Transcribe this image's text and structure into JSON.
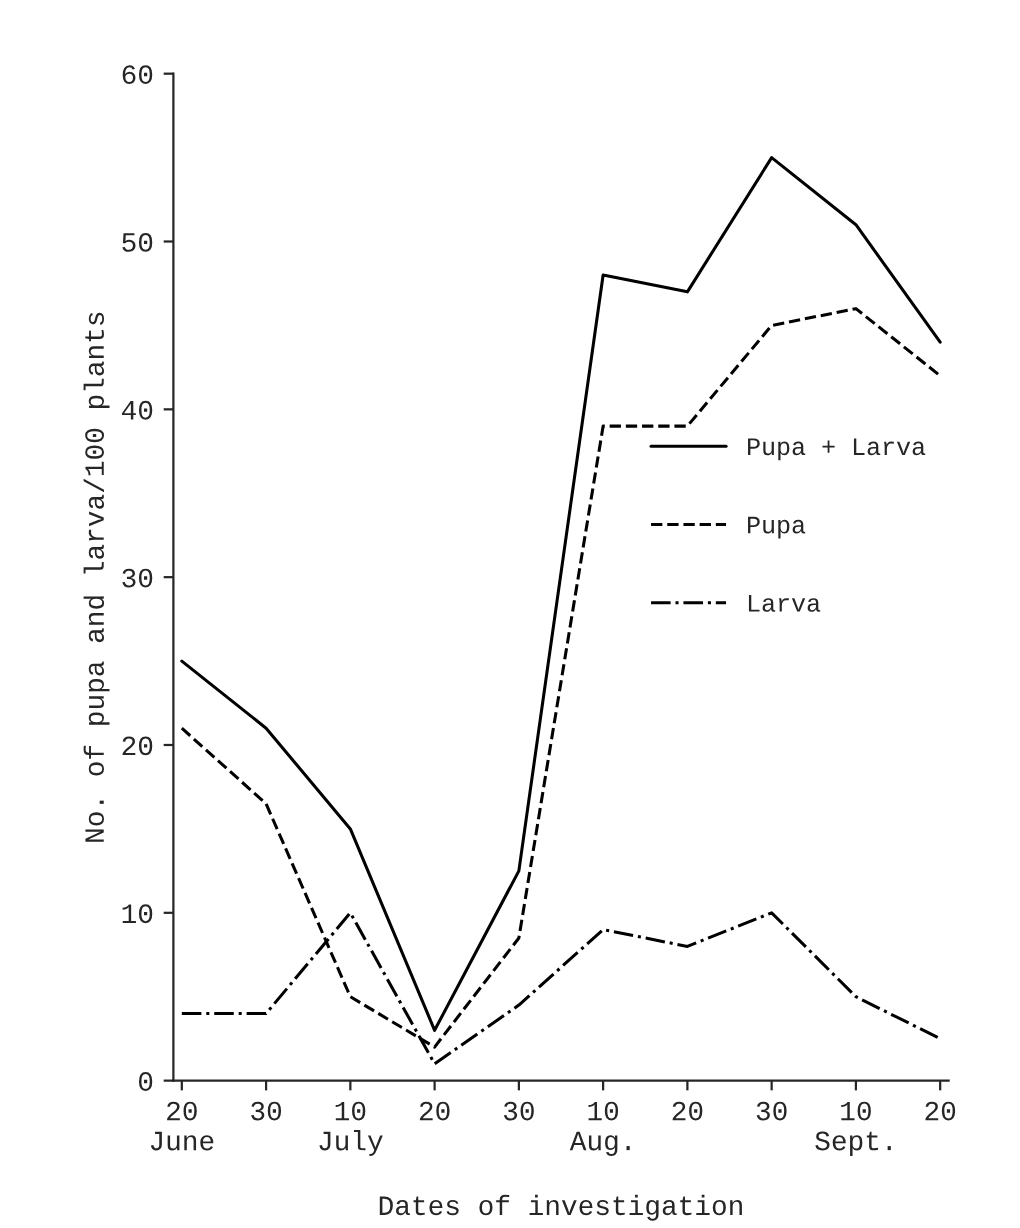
{
  "chart_data": {
    "type": "line",
    "xlabel": "Dates of investigation",
    "ylabel": "No. of pupa and larva/100 plants",
    "categories": [
      "20\nJune",
      "30",
      "10\nJuly",
      "20",
      "30",
      "10\nAug.",
      "20",
      "30",
      "10\nSept.",
      "20"
    ],
    "series": [
      {
        "name": "Pupa + Larva",
        "color": "#000000",
        "line_style": "solid",
        "values": [
          25,
          21,
          15,
          3,
          12.5,
          48,
          47,
          55,
          51,
          44
        ]
      },
      {
        "name": "Pupa",
        "color": "#000000",
        "line_style": "dashed",
        "values": [
          21,
          16.5,
          5,
          2,
          8.5,
          39,
          39,
          45,
          46,
          42
        ]
      },
      {
        "name": "Larva",
        "color": "#000000",
        "line_style": "dashdot",
        "values": [
          4,
          4,
          10,
          1,
          4.5,
          9,
          8,
          10,
          5,
          2.5
        ]
      }
    ],
    "ylim": [
      0,
      60
    ],
    "yticks": [
      0,
      10,
      20,
      30,
      40,
      50,
      60
    ],
    "grid": false,
    "legend": "right",
    "marker": "none"
  }
}
